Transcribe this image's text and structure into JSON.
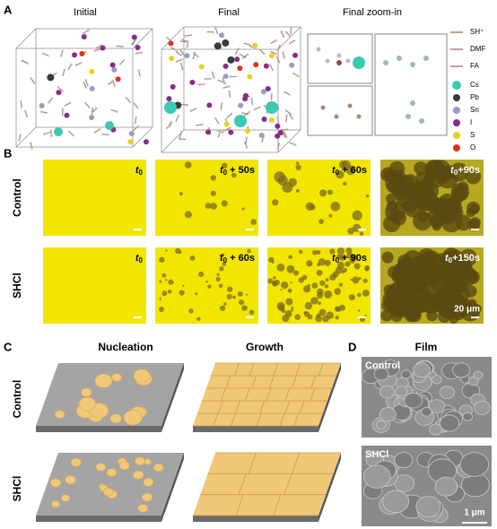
{
  "figure": {
    "panel_a": {
      "label": "A",
      "titles": [
        "Initial",
        "Final",
        "Final zoom-in"
      ],
      "legend": [
        "SH⁺",
        "DMF",
        "FA",
        "Cs",
        "Pb",
        "Sn",
        "I",
        "S",
        "O"
      ]
    },
    "panel_b": {
      "label": "B",
      "rows": [
        {
          "name": "Control",
          "times": [
            {
              "t": "t",
              "sub": "0"
            },
            {
              "t": "t",
              "sub": "0",
              "suffix": " + 50s"
            },
            {
              "t": "t",
              "sub": "0",
              "suffix": " + 60s"
            },
            {
              "t": "t",
              "sub": "0",
              "suffix": "+90s"
            }
          ]
        },
        {
          "name": "SHCl",
          "times": [
            {
              "t": "t",
              "sub": "0"
            },
            {
              "t": "t",
              "sub": "0",
              "suffix": " + 60s"
            },
            {
              "t": "t",
              "sub": "0",
              "suffix": " + 90s"
            },
            {
              "t": "t",
              "sub": "0",
              "suffix": "+150s"
            }
          ]
        }
      ],
      "scale_bar": "20 μm"
    },
    "panel_c": {
      "label": "C",
      "columns": [
        "Nucleation",
        "Growth"
      ],
      "rows": [
        "Control",
        "SHCl"
      ]
    },
    "panel_d": {
      "label": "D",
      "title": "Film",
      "rows": [
        "Control",
        "SHCl"
      ],
      "scale_bar": "1 μm"
    }
  }
}
